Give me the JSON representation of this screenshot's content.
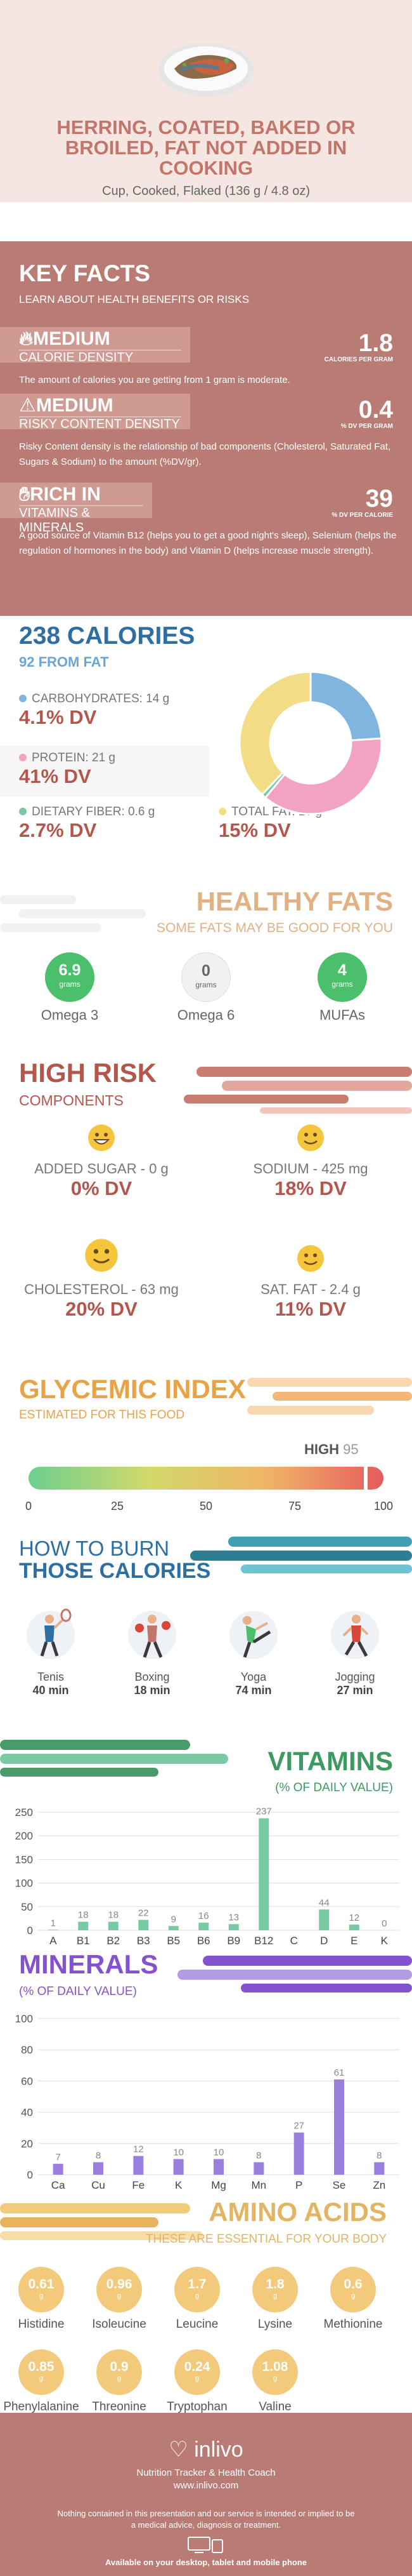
{
  "header": {
    "title": "HERRING, COATED, BAKED OR BROILED, FAT NOT ADDED IN COOKING",
    "portion": "Cup, Cooked, Flaked (136 g / 4.8 oz)"
  },
  "key_facts": {
    "heading": "KEY FACTS",
    "subheading": "LEARN ABOUT HEALTH BENEFITS OR RISKS",
    "items": [
      {
        "level": "MEDIUM",
        "label": "CALORIE DENSITY",
        "value": "1.8",
        "unit": "CALORIES PER GRAM",
        "description": "The amount of calories you are getting from 1 gram is moderate."
      },
      {
        "level": "MEDIUM",
        "label": "RISKY CONTENT DENSITY",
        "value": "0.4",
        "unit": "% DV PER GRAM",
        "description": "Risky Content density is the relationship of bad components (Cholesterol, Saturated Fat, Sugars & Sodium) to the amount (%DV/gr)."
      },
      {
        "level": "RICH  IN",
        "label": "VITAMINS & MINERALS",
        "value": "39",
        "unit": "% DV PER CALORIE",
        "description": "A good source of Vitamin B12 (helps you to get a good night's sleep), Selenium (helps the regulation of hormones in the body) and Vitamin D (helps increase muscle strength)."
      }
    ]
  },
  "calories": {
    "heading": "238 CALORIES",
    "from_fat": "92 FROM FAT",
    "macros": [
      {
        "label": "CARBOHYDRATES: 14 g",
        "dv": "4.1% DV",
        "color": "#7fb5df"
      },
      {
        "label": "PROTEIN: 21 g",
        "dv": "41% DV",
        "color": "#f2a2c3"
      },
      {
        "label": "DIETARY FIBER: 0.6 g",
        "dv": "2.7% DV",
        "color": "#79c9a3"
      },
      {
        "label": "TOTAL FAT: 10 g",
        "dv": "15% DV",
        "color": "#f2dc86"
      }
    ]
  },
  "chart_data": [
    {
      "type": "pie",
      "categories": [
        "Carbohydrates",
        "Protein",
        "Dietary Fiber",
        "Total Fat"
      ],
      "values": [
        24,
        37,
        1,
        38
      ],
      "colors": [
        "#7fb5df",
        "#f2a2c3",
        "#79c9a3",
        "#f2dc86"
      ]
    },
    {
      "type": "bar",
      "title": "VITAMINS",
      "subtitle": "(% OF DAILY VALUE)",
      "categories": [
        "A",
        "B1",
        "B2",
        "B3",
        "B5",
        "B6",
        "B9",
        "B12",
        "C",
        "D",
        "E",
        "K"
      ],
      "values": [
        1,
        18,
        18,
        22,
        9,
        16,
        13,
        237,
        0,
        44,
        12,
        0
      ],
      "labels": [
        "1",
        "18",
        "18",
        "22",
        "9",
        "16",
        "13",
        "237",
        "",
        "44",
        "12",
        "0"
      ],
      "ylim": [
        0,
        250
      ],
      "yticks": [
        0,
        50,
        100,
        150,
        200,
        250
      ],
      "color": "#79c9a3",
      "grid": true
    },
    {
      "type": "bar",
      "title": "MINERALS",
      "subtitle": "(% OF DAILY VALUE)",
      "categories": [
        "Ca",
        "Cu",
        "Fe",
        "K",
        "Mg",
        "Mn",
        "P",
        "Se",
        "Zn"
      ],
      "values": [
        7,
        8,
        12,
        10,
        10,
        8,
        27,
        61,
        8
      ],
      "labels": [
        "7",
        "8",
        "12",
        "10",
        "10",
        "8",
        "27",
        "61",
        "8"
      ],
      "ylim": [
        0,
        100
      ],
      "yticks": [
        0,
        20,
        40,
        60,
        80,
        100
      ],
      "color": "#9a7fe0",
      "grid": true
    }
  ],
  "healthy_fats": {
    "heading": "HEALTHY FATS",
    "subheading": "SOME FATS MAY BE GOOD FOR YOU",
    "unit": "grams",
    "items": [
      {
        "value": "6.9",
        "label": "Omega 3",
        "color": "#4bbf6b",
        "text_color": "#ffffff"
      },
      {
        "value": "0",
        "label": "Omega 6",
        "color": "#f1f1f1",
        "text_color": "#666666"
      },
      {
        "value": "4",
        "label": "MUFAs",
        "color": "#4bbf6b",
        "text_color": "#ffffff"
      }
    ]
  },
  "high_risk": {
    "heading": "HIGH RISK",
    "subheading": "COMPONENTS",
    "items": [
      {
        "label": "ADDED SUGAR - 0 g",
        "dv": "0% DV"
      },
      {
        "label": "SODIUM - 425 mg",
        "dv": "18% DV"
      },
      {
        "label": "CHOLESTEROL - 63 mg",
        "dv": "20% DV"
      },
      {
        "label": "SAT. FAT - 2.4 g",
        "dv": "11% DV"
      }
    ]
  },
  "glycemic": {
    "heading": "GLYCEMIC INDEX",
    "subheading": "ESTIMATED FOR THIS FOOD",
    "level": "HIGH",
    "value": "95",
    "value_num": 95,
    "ticks": [
      "0",
      "25",
      "50",
      "75",
      "100"
    ]
  },
  "burn": {
    "heading_1": "HOW TO BURN",
    "heading_2": "THOSE CALORIES",
    "activities": [
      {
        "icon": "tennis-icon",
        "label": "Tenis",
        "minutes": "40 min"
      },
      {
        "icon": "boxing-icon",
        "label": "Boxing",
        "minutes": "18 min"
      },
      {
        "icon": "yoga-icon",
        "label": "Yoga",
        "minutes": "74 min"
      },
      {
        "icon": "jogging-icon",
        "label": "Jogging",
        "minutes": "27 min"
      }
    ]
  },
  "vitamins": {
    "heading": "VITAMINS",
    "subheading": "(% OF DAILY VALUE)"
  },
  "minerals": {
    "heading": "MINERALS",
    "subheading": "(% OF DAILY VALUE)"
  },
  "amino": {
    "heading": "AMINO ACIDS",
    "subheading": "THESE ARE ESSENTIAL FOR YOUR BODY",
    "unit": "g",
    "items": [
      {
        "value": "0.61",
        "label": "Histidine"
      },
      {
        "value": "0.96",
        "label": "Isoleucine"
      },
      {
        "value": "1.7",
        "label": "Leucine"
      },
      {
        "value": "1.8",
        "label": "Lysine"
      },
      {
        "value": "0.6",
        "label": "Methionine"
      },
      {
        "value": "0.85",
        "label": "Phenylalanine"
      },
      {
        "value": "0.9",
        "label": "Threonine"
      },
      {
        "value": "0.24",
        "label": "Tryptophan"
      },
      {
        "value": "1.08",
        "label": "Valine"
      }
    ]
  },
  "footer": {
    "brand": "inlivo",
    "tagline": "Nutrition Tracker & Health Coach",
    "url": "www.inlivo.com",
    "disclaimer": "Nothing contained in this presentation and our service is intended or implied to be a medical advice, diagnosis or treatment.",
    "available": "Available on your desktop, tablet and mobile phone"
  }
}
